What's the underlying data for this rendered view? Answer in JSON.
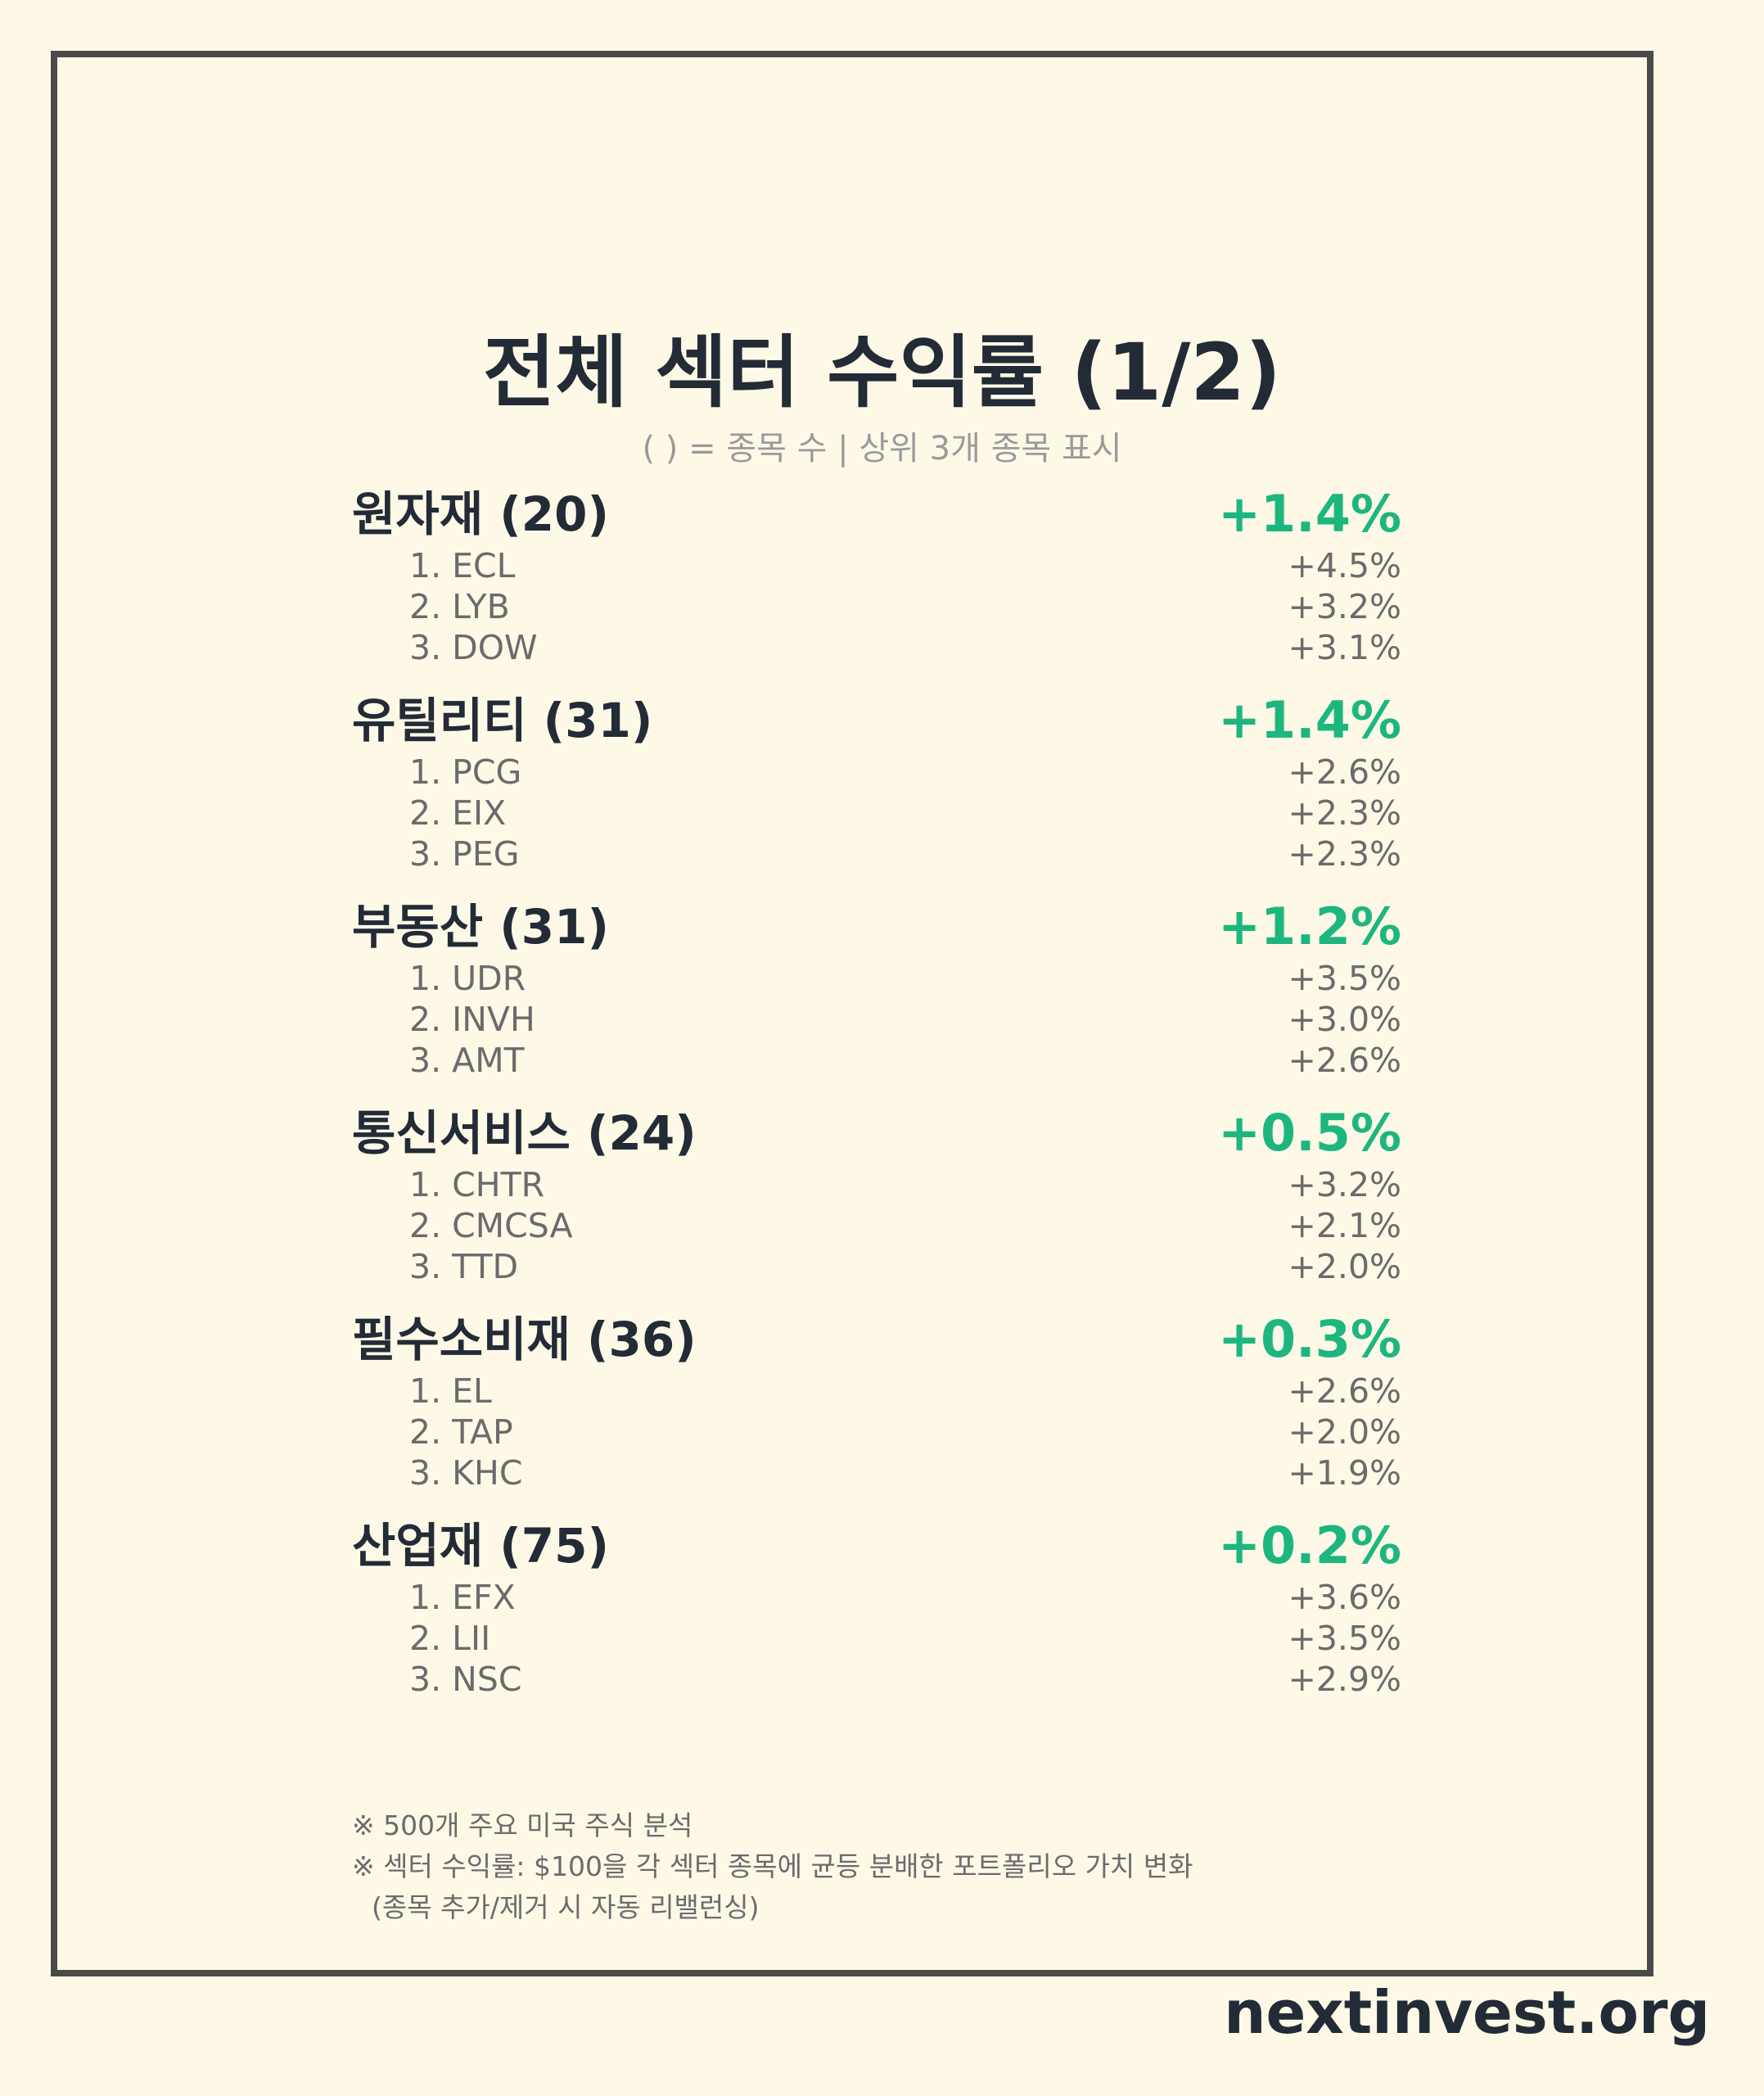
{
  "title": "전체 섹터 수익률 (1/2)",
  "subtitle": "( ) = 종목 수 | 상위 3개 종목 표시",
  "sectors": [
    {
      "name": "원자재 (20)",
      "return": "+1.4%",
      "stocks": [
        {
          "label": "1. ECL",
          "return": "+4.5%"
        },
        {
          "label": "2. LYB",
          "return": "+3.2%"
        },
        {
          "label": "3. DOW",
          "return": "+3.1%"
        }
      ]
    },
    {
      "name": "유틸리티 (31)",
      "return": "+1.4%",
      "stocks": [
        {
          "label": "1. PCG",
          "return": "+2.6%"
        },
        {
          "label": "2. EIX",
          "return": "+2.3%"
        },
        {
          "label": "3. PEG",
          "return": "+2.3%"
        }
      ]
    },
    {
      "name": "부동산 (31)",
      "return": "+1.2%",
      "stocks": [
        {
          "label": "1. UDR",
          "return": "+3.5%"
        },
        {
          "label": "2. INVH",
          "return": "+3.0%"
        },
        {
          "label": "3. AMT",
          "return": "+2.6%"
        }
      ]
    },
    {
      "name": "통신서비스 (24)",
      "return": "+0.5%",
      "stocks": [
        {
          "label": "1. CHTR",
          "return": "+3.2%"
        },
        {
          "label": "2. CMCSA",
          "return": "+2.1%"
        },
        {
          "label": "3. TTD",
          "return": "+2.0%"
        }
      ]
    },
    {
      "name": "필수소비재 (36)",
      "return": "+0.3%",
      "stocks": [
        {
          "label": "1. EL",
          "return": "+2.6%"
        },
        {
          "label": "2. TAP",
          "return": "+2.0%"
        },
        {
          "label": "3. KHC",
          "return": "+1.9%"
        }
      ]
    },
    {
      "name": "산업재 (75)",
      "return": "+0.2%",
      "stocks": [
        {
          "label": "1. EFX",
          "return": "+3.6%"
        },
        {
          "label": "2. LII",
          "return": "+3.5%"
        },
        {
          "label": "3. NSC",
          "return": "+2.9%"
        }
      ]
    }
  ],
  "notes": [
    "※ 500개 주요 미국 주식 분석",
    "※ 섹터 수익률: $100을 각 섹터 종목에 균등 분배한 포트폴리오 가치 변화",
    "(종목 추가/제거 시 자동 리밸런싱)"
  ],
  "brand": "nextinvest.org",
  "colors": {
    "background": "#fef9e7",
    "frame": "#4a4a4a",
    "positive": "#1db67f",
    "heading": "#222b36",
    "muted": "#6b6b6b"
  }
}
